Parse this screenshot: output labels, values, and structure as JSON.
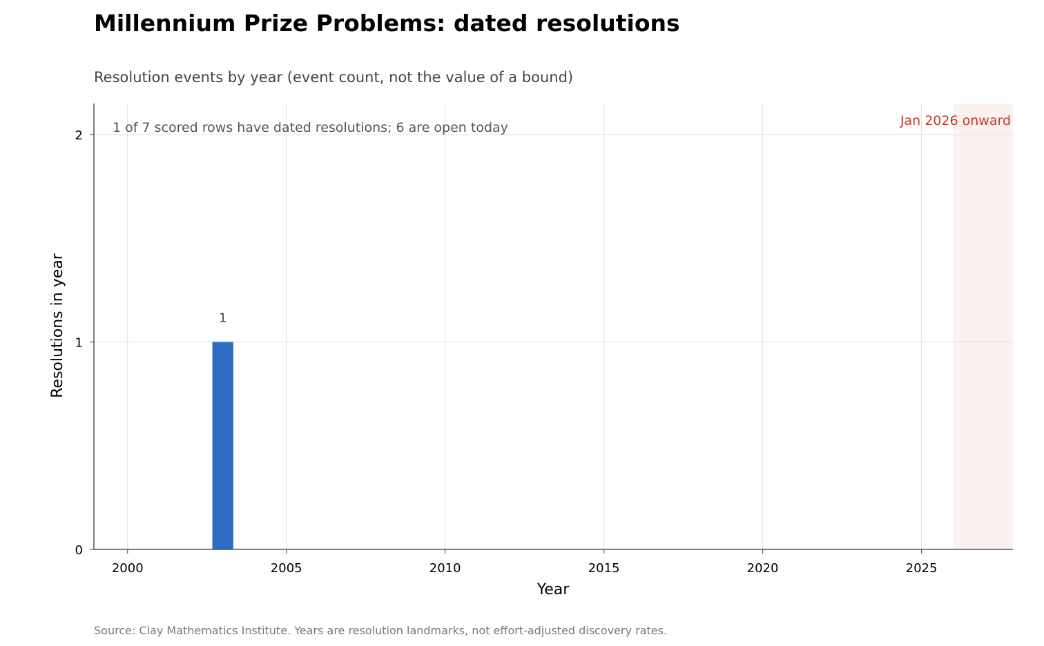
{
  "chart_data": {
    "type": "bar",
    "title": "Millennium Prize Problems: dated resolutions",
    "subtitle": "Resolution events by year (event count, not the value of a bound)",
    "xlabel": "Year",
    "ylabel": "Resolutions in year",
    "x": [
      2003
    ],
    "values": [
      1
    ],
    "bar_labels": [
      "1"
    ],
    "xlim": [
      1998.94,
      2027.88
    ],
    "ylim": [
      0,
      2.15
    ],
    "x_ticks": [
      2000,
      2005,
      2010,
      2015,
      2020,
      2025
    ],
    "y_ticks": [
      0,
      1,
      2
    ],
    "grid": true,
    "note": "1 of 7 scored rows have dated resolutions; 6 are open today",
    "shaded_region": {
      "start": 2026.0,
      "label": "Jan 2026 onward",
      "fill_color": "#fcf1ef",
      "text_color": "#c0392b"
    },
    "bar_color": "#2f6dc4",
    "source": "Source: Clay Mathematics Institute. Years are resolution landmarks, not effort-adjusted discovery rates."
  }
}
